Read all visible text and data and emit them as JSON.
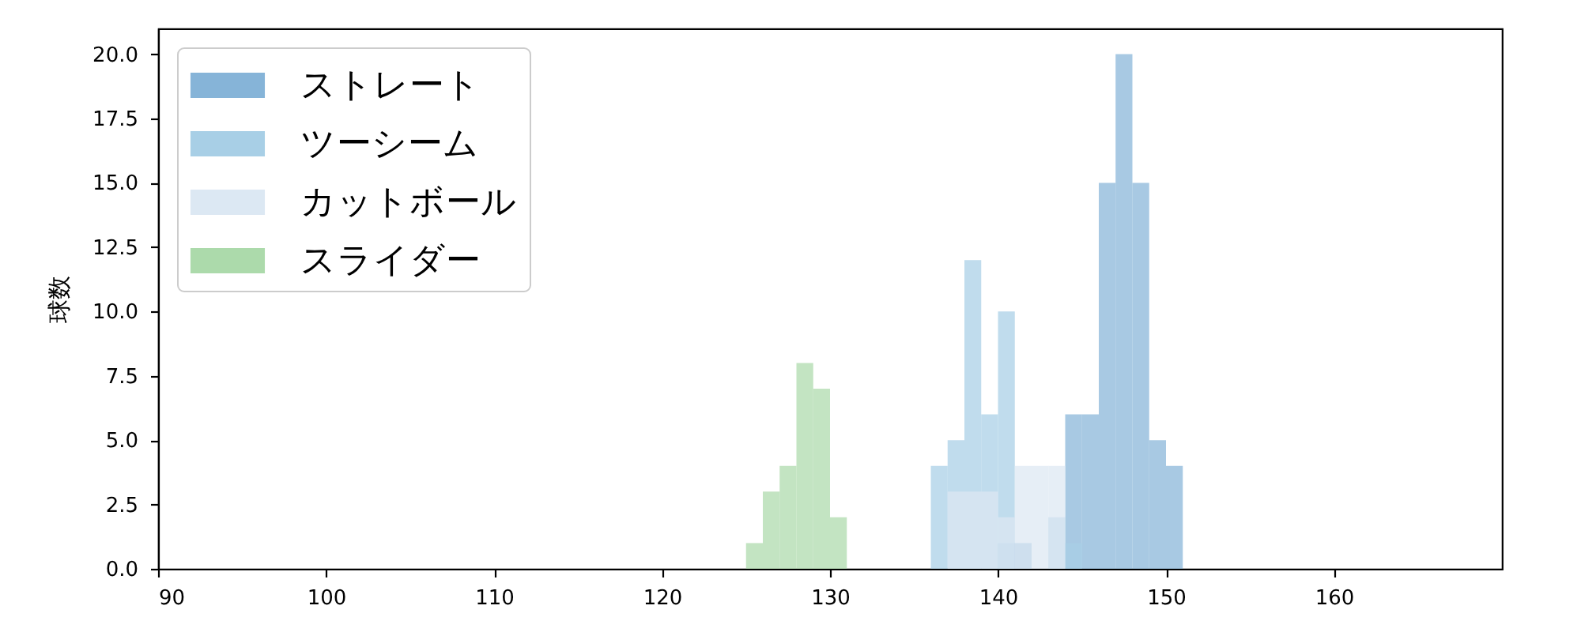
{
  "chart_data": {
    "type": "histogram",
    "ylabel": "球数",
    "bins": [
      125,
      126,
      127,
      128,
      129,
      130,
      131,
      132,
      133,
      134,
      135,
      136,
      137,
      138,
      139,
      140,
      141,
      142,
      143,
      144,
      145,
      146,
      147,
      148,
      149,
      150,
      151
    ],
    "series": [
      {
        "name": "ストレート",
        "color": "#86b4d8",
        "values": [
          0,
          0,
          0,
          0,
          0,
          0,
          0,
          0,
          0,
          0,
          0,
          0,
          0,
          0,
          0,
          1,
          1,
          0,
          0,
          6,
          6,
          15,
          20,
          15,
          5,
          4
        ]
      },
      {
        "name": "ツーシーム",
        "color": "#a8cfe6",
        "values": [
          0,
          0,
          0,
          0,
          0,
          0,
          0,
          0,
          0,
          0,
          0,
          4,
          5,
          12,
          6,
          10,
          0,
          0,
          2,
          1,
          0,
          0,
          0,
          0,
          0,
          0
        ]
      },
      {
        "name": "カットボール",
        "color": "#dce8f3",
        "values": [
          0,
          0,
          0,
          0,
          0,
          0,
          0,
          0,
          0,
          0,
          0,
          0,
          3,
          3,
          3,
          2,
          4,
          4,
          4,
          0,
          0,
          0,
          0,
          0,
          0,
          0
        ]
      },
      {
        "name": "スライダー",
        "color": "#acdaab",
        "values": [
          1,
          3,
          4,
          8,
          7,
          2,
          0,
          0,
          0,
          0,
          0,
          0,
          0,
          0,
          0,
          0,
          0,
          0,
          0,
          0,
          0,
          0,
          0,
          0,
          0,
          0
        ]
      }
    ],
    "xlim": [
      90,
      170
    ],
    "xticks": [
      90,
      100,
      110,
      120,
      130,
      140,
      150,
      160
    ],
    "ylim": [
      0,
      21
    ],
    "yticks": [
      {
        "value": 0,
        "label": "0.0"
      },
      {
        "value": 2.5,
        "label": "2.5"
      },
      {
        "value": 5,
        "label": "5.0"
      },
      {
        "value": 7.5,
        "label": "7.5"
      },
      {
        "value": 10,
        "label": "10.0"
      },
      {
        "value": 12.5,
        "label": "12.5"
      },
      {
        "value": 15,
        "label": "15.0"
      },
      {
        "value": 17.5,
        "label": "17.5"
      },
      {
        "value": 20,
        "label": "20.0"
      }
    ],
    "legend": "top left"
  }
}
